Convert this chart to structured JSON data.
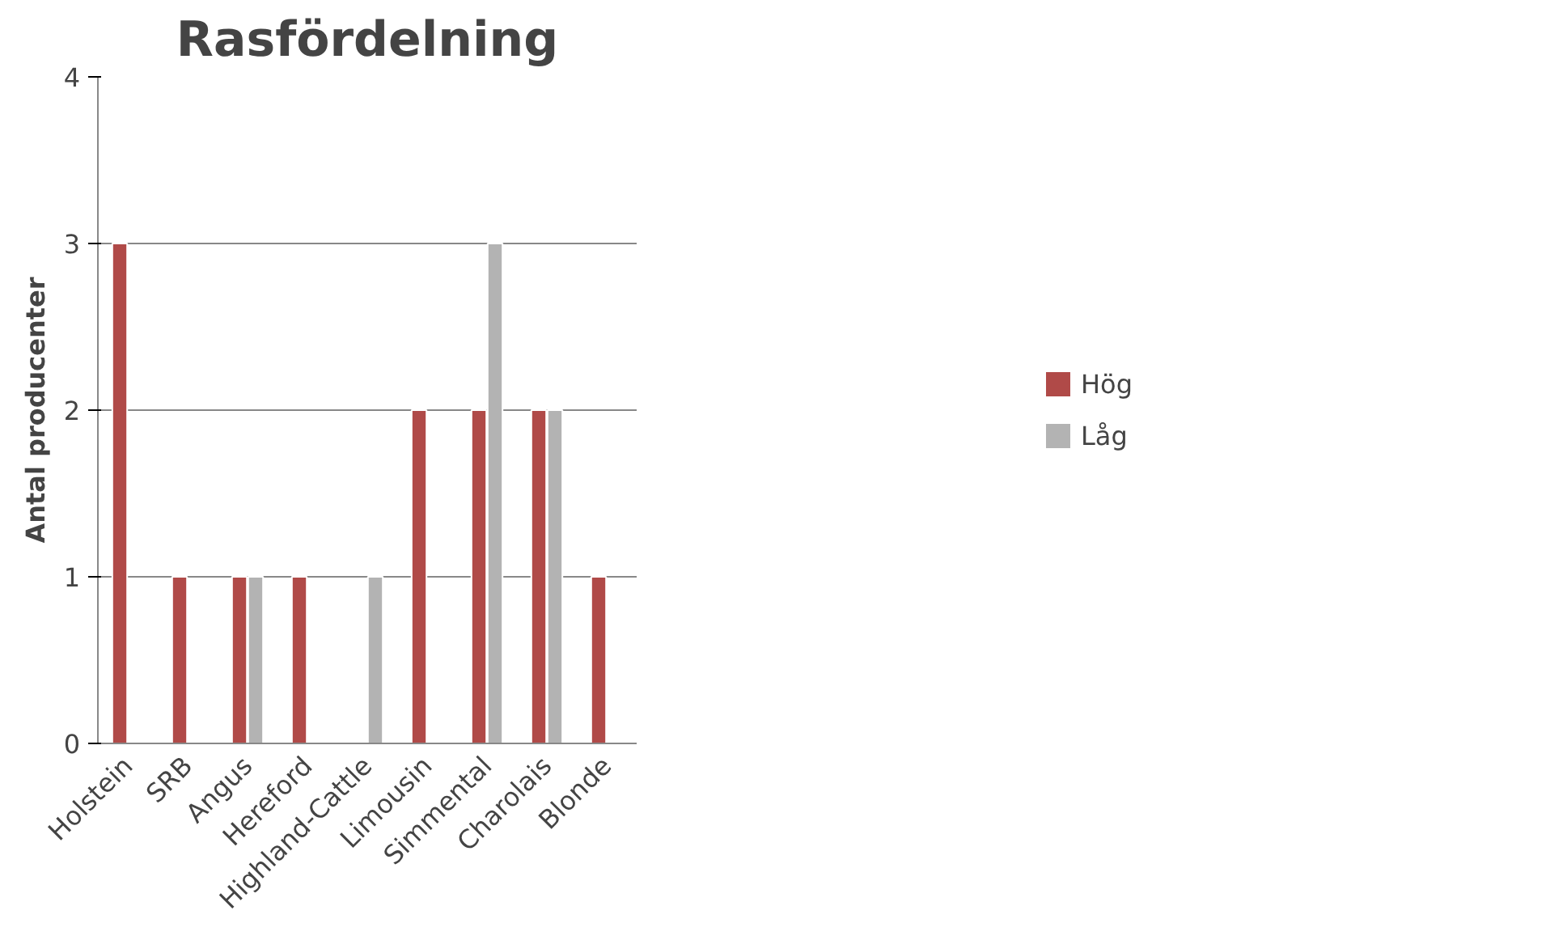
{
  "chart_data": {
    "type": "bar",
    "title": "Rasfördelning",
    "ylabel": "Antal producenter",
    "categories": [
      "Holstein",
      "SRB",
      "Angus",
      "Hereford",
      "Highland-Cattle",
      "Limousin",
      "Simmental",
      "Charolais",
      "Blonde"
    ],
    "series": [
      {
        "name": "Hög",
        "color": "#b04a48",
        "values": [
          3,
          1,
          1,
          1,
          null,
          2,
          2,
          2,
          1
        ]
      },
      {
        "name": "Låg",
        "color": "#b3b3b3",
        "values": [
          null,
          null,
          1,
          null,
          1,
          null,
          3,
          2,
          null
        ]
      }
    ],
    "ylim": [
      0,
      4
    ],
    "yticks": [
      0,
      1,
      2,
      3,
      4
    ],
    "grid": "y",
    "legend": "right"
  }
}
